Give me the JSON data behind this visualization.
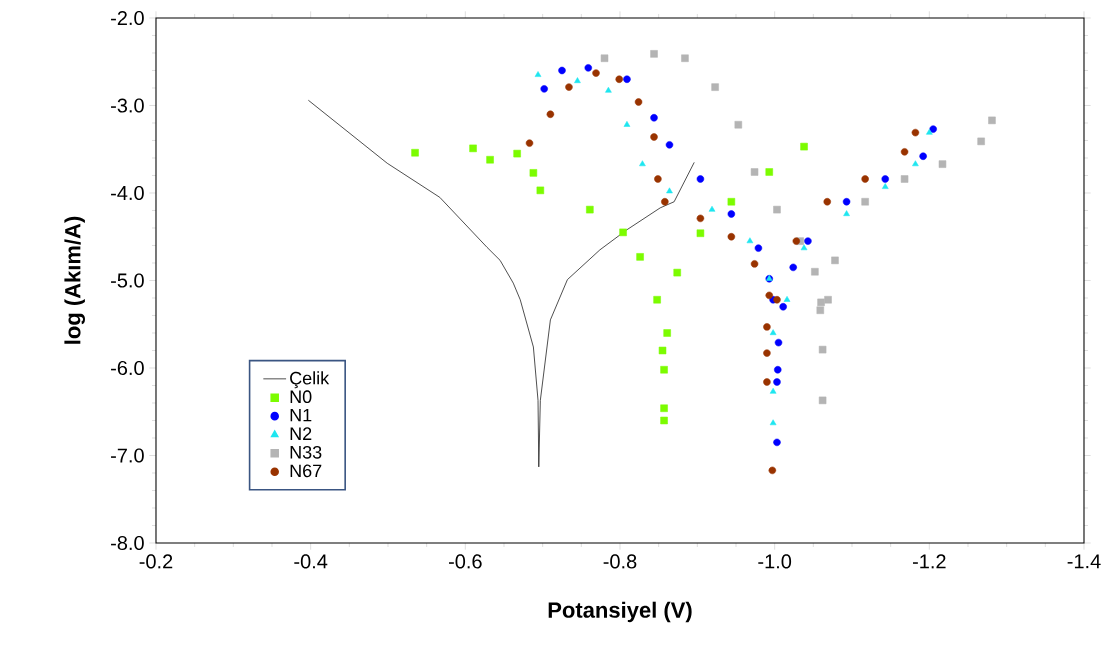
{
  "chart_data": {
    "type": "scatter",
    "xlabel": "Potansiyel (V)",
    "ylabel": "log (Akım/A)",
    "xlim": [
      -0.2,
      -1.4
    ],
    "xticks": [
      -0.2,
      -0.4,
      -0.6,
      -0.8,
      {
        "value": -1,
        "label": "-1.0"
      },
      -1.2,
      -1.4
    ],
    "ylim": [
      -8,
      -2
    ],
    "yticks": [
      {
        "value": -2,
        "label": "-2.0"
      },
      {
        "value": -3,
        "label": "-3.0"
      },
      {
        "value": -4,
        "label": "-4.0"
      },
      {
        "value": -5,
        "label": "-5.0"
      },
      {
        "value": -6,
        "label": "-6.0"
      },
      {
        "value": -7,
        "label": "-7.0"
      },
      {
        "value": -8,
        "label": "-8.0"
      }
    ],
    "grid": false,
    "legend": "bottom left",
    "series": [
      {
        "name": "Çelik",
        "type": "line",
        "marker": "none",
        "line_style": "solid",
        "color": "#222222",
        "x": [
          -0.397,
          -0.499,
          -0.567,
          -0.628,
          -0.645,
          -0.662,
          -0.671,
          -0.688,
          -0.694,
          -0.695,
          -0.697,
          -0.71,
          -0.732,
          -0.774,
          -0.809,
          -0.852,
          -0.87,
          -0.896
        ],
        "values": [
          -2.94,
          -3.66,
          -4.05,
          -4.62,
          -4.77,
          -5.03,
          -5.22,
          -5.76,
          -6.37,
          -7.13,
          -6.37,
          -5.45,
          -4.99,
          -4.65,
          -4.42,
          -4.17,
          -4.1,
          -3.65
        ]
      },
      {
        "name": "N0",
        "marker": "square",
        "color": "#7cfc00",
        "x": [
          -0.535,
          -0.61,
          -0.632,
          -0.667,
          -0.688,
          -0.697,
          -0.761,
          -0.804,
          -0.826,
          -0.848,
          -0.855,
          -0.857,
          -0.857,
          -0.857,
          -0.861,
          -0.874,
          -0.904,
          -0.944,
          -0.993,
          -1.038
        ],
        "values": [
          -3.54,
          -3.49,
          -3.62,
          -3.55,
          -3.77,
          -3.97,
          -4.19,
          -4.45,
          -4.73,
          -5.22,
          -5.8,
          -6.02,
          -6.46,
          -6.6,
          -5.6,
          -4.91,
          -4.46,
          -4.1,
          -3.76,
          -3.47
        ]
      },
      {
        "name": "N1",
        "marker": "circle",
        "color": "#0000ff",
        "x": [
          -0.702,
          -0.725,
          -0.759,
          -0.809,
          -0.844,
          -0.864,
          -0.904,
          -0.944,
          -0.979,
          -0.993,
          -0.998,
          -1.005,
          -1.004,
          -1.003,
          -1.003,
          -1.011,
          -1.024,
          -1.043,
          -1.093,
          -1.143,
          -1.192,
          -1.205
        ],
        "values": [
          -2.81,
          -2.6,
          -2.57,
          -2.7,
          -3.14,
          -3.45,
          -3.84,
          -4.24,
          -4.63,
          -4.98,
          -5.22,
          -5.71,
          -6.02,
          -6.16,
          -6.85,
          -5.3,
          -4.85,
          -4.55,
          -4.1,
          -3.84,
          -3.58,
          -3.27
        ]
      },
      {
        "name": "N2",
        "marker": "triangle",
        "color": "#1ee6f0",
        "x": [
          -0.694,
          -0.745,
          -0.785,
          -0.809,
          -0.829,
          -0.864,
          -0.919,
          -0.968,
          -0.993,
          -0.998,
          -0.998,
          -0.998,
          -1.016,
          -1.038,
          -1.093,
          -1.143,
          -1.182,
          -1.2
        ],
        "values": [
          -2.65,
          -2.72,
          -2.83,
          -3.22,
          -3.67,
          -3.98,
          -4.19,
          -4.55,
          -4.98,
          -5.6,
          -6.27,
          -6.63,
          -5.22,
          -4.63,
          -4.24,
          -3.93,
          -3.67,
          -3.31
        ]
      },
      {
        "name": "N33",
        "marker": "square",
        "color": "#b4b4b4",
        "x": [
          -0.78,
          -0.844,
          -0.884,
          -0.923,
          -0.953,
          -0.974,
          -1.003,
          -1.033,
          -1.052,
          -1.06,
          -1.059,
          -1.062,
          -1.062,
          -1.069,
          -1.078,
          -1.117,
          -1.168,
          -1.217,
          -1.267,
          -1.281
        ],
        "values": [
          -2.46,
          -2.41,
          -2.46,
          -2.79,
          -3.22,
          -3.76,
          -4.19,
          -4.55,
          -4.9,
          -5.25,
          -5.34,
          -5.79,
          -6.37,
          -5.22,
          -4.77,
          -4.1,
          -3.84,
          -3.67,
          -3.41,
          -3.17
        ]
      },
      {
        "name": "N67",
        "marker": "circle",
        "color": "#993300",
        "x": [
          -0.683,
          -0.71,
          -0.734,
          -0.769,
          -0.799,
          -0.824,
          -0.844,
          -0.849,
          -0.858,
          -0.904,
          -0.944,
          -0.974,
          -0.993,
          -0.99,
          -0.99,
          -0.99,
          -0.997,
          -1.003,
          -1.028,
          -1.068,
          -1.117,
          -1.168,
          -1.182
        ],
        "values": [
          -3.43,
          -3.1,
          -2.79,
          -2.63,
          -2.7,
          -2.96,
          -3.36,
          -3.84,
          -4.1,
          -4.29,
          -4.5,
          -4.81,
          -5.17,
          -5.53,
          -5.83,
          -6.16,
          -7.17,
          -5.22,
          -4.55,
          -4.1,
          -3.84,
          -3.53,
          -3.31
        ]
      }
    ]
  }
}
